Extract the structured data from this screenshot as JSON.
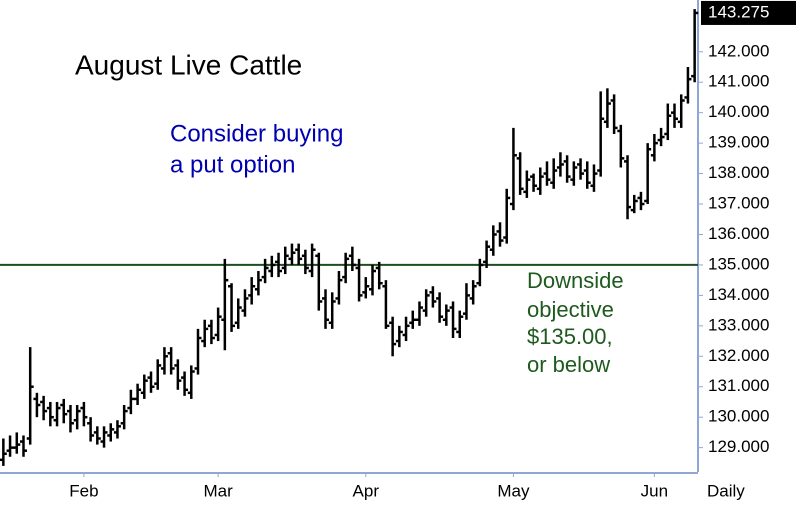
{
  "chart_data": {
    "type": "ohlc",
    "title": "August Live Cattle",
    "note": [
      "Consider buying",
      "a put option"
    ],
    "target_note": [
      "Downside",
      "objective",
      "$135.00,",
      "or below"
    ],
    "period_label": "Daily",
    "color": "#000000",
    "hline": {
      "value": 135,
      "color": "#1e4d1e"
    },
    "ylim": [
      128.2,
      143.7
    ],
    "yticks": [
      {
        "value": 129,
        "label": "129.000"
      },
      {
        "value": 130,
        "label": "130.000"
      },
      {
        "value": 131,
        "label": "131.000"
      },
      {
        "value": 132,
        "label": "132.000"
      },
      {
        "value": 133,
        "label": "133.000"
      },
      {
        "value": 134,
        "label": "134.000"
      },
      {
        "value": 135,
        "label": "135.000"
      },
      {
        "value": 136,
        "label": "136.000"
      },
      {
        "value": 137,
        "label": "137.000"
      },
      {
        "value": 138,
        "label": "138.000"
      },
      {
        "value": 139,
        "label": "139.000"
      },
      {
        "value": 140,
        "label": "140.000"
      },
      {
        "value": 141,
        "label": "141.000"
      },
      {
        "value": 142,
        "label": "142.000"
      }
    ],
    "xticks": [
      {
        "value": 12,
        "label": "Feb"
      },
      {
        "value": 32,
        "label": "Mar"
      },
      {
        "value": 54,
        "label": "Apr"
      },
      {
        "value": 76,
        "label": "May"
      },
      {
        "value": 97,
        "label": "Jun"
      }
    ],
    "open": [
      128.6,
      128.9,
      129.0,
      129.2,
      129.3,
      130.6,
      130.5,
      130.3,
      129.9,
      130.4,
      130.2,
      129.9,
      130.3,
      129.8,
      129.5,
      129.2,
      129.4,
      129.5,
      129.8,
      130.3,
      130.6,
      130.8,
      131.3,
      131.1,
      131.6,
      132.1,
      131.7,
      131.3,
      130.8,
      131.6,
      132.5,
      133.0,
      132.7,
      133.2,
      134.3,
      133.1,
      133.5,
      134.0,
      134.2,
      134.6,
      134.8,
      135.1,
      134.9,
      135.2,
      135.5,
      135.3,
      134.8,
      135.3,
      133.9,
      133.1,
      133.9,
      134.6,
      135.3,
      134.9,
      134.1,
      134.2,
      134.9,
      134.3,
      133.1,
      132.5,
      132.7,
      133.1,
      133.2,
      133.5,
      134.1,
      133.9,
      133.2,
      133.6,
      132.8,
      133.4,
      133.9,
      134.4,
      135.1,
      135.5,
      136.1,
      135.9,
      137.0,
      138.5,
      137.4,
      137.9,
      137.5,
      138.0,
      137.7,
      138.2,
      138.4,
      137.8,
      138.3,
      138.1,
      137.6,
      138.1,
      139.7,
      140.4,
      139.4,
      138.4,
      136.8,
      137.2,
      137.1,
      138.6,
      139.1,
      139.3,
      140.0,
      139.7,
      140.5,
      141.2
    ],
    "high": [
      129.3,
      129.4,
      129.5,
      129.4,
      132.3,
      130.8,
      130.7,
      130.5,
      130.5,
      130.6,
      130.4,
      130.4,
      130.5,
      130.0,
      129.7,
      129.7,
      129.8,
      129.9,
      130.4,
      130.9,
      131.1,
      131.4,
      131.5,
      131.9,
      132.3,
      132.3,
      131.9,
      131.5,
      131.7,
      132.9,
      133.2,
      133.2,
      133.6,
      135.2,
      134.4,
      133.9,
      134.2,
      134.6,
      134.8,
      135.2,
      135.3,
      135.4,
      135.6,
      135.7,
      135.7,
      135.5,
      135.7,
      135.4,
      134.2,
      134.1,
      134.8,
      135.4,
      135.6,
      135.2,
      134.6,
      135.0,
      135.1,
      134.5,
      133.3,
      133.0,
      133.3,
      133.5,
      133.8,
      134.2,
      134.3,
      134.1,
      133.7,
      133.8,
      133.5,
      134.4,
      134.5,
      135.2,
      135.8,
      136.3,
      136.4,
      137.5,
      139.5,
      138.7,
      138.1,
      138.0,
      138.2,
      138.4,
      138.5,
      138.7,
      138.6,
      138.4,
      138.5,
      138.4,
      138.3,
      140.7,
      140.8,
      140.6,
      139.6,
      138.6,
      137.3,
      137.4,
      139.0,
      139.3,
      139.5,
      140.3,
      140.3,
      140.6,
      141.5,
      143.4
    ],
    "low": [
      128.4,
      128.7,
      128.8,
      128.7,
      129.1,
      130.0,
      129.9,
      129.7,
      129.7,
      129.8,
      129.5,
      129.6,
      129.7,
      129.2,
      129.1,
      129.0,
      129.2,
      129.3,
      129.6,
      130.1,
      130.4,
      130.6,
      130.8,
      130.9,
      131.4,
      131.4,
      130.9,
      130.7,
      130.6,
      131.4,
      132.3,
      132.4,
      132.5,
      132.2,
      132.8,
      132.9,
      133.3,
      133.7,
      134.0,
      134.4,
      134.6,
      134.6,
      134.7,
      135.0,
      135.0,
      134.7,
      134.6,
      133.5,
      132.9,
      132.9,
      133.7,
      134.4,
      134.8,
      133.8,
      133.9,
      134.0,
      134.2,
      132.9,
      132.0,
      132.3,
      132.5,
      132.9,
      133.0,
      133.3,
      133.6,
      133.1,
      133.0,
      132.6,
      132.6,
      133.2,
      133.7,
      134.3,
      134.9,
      135.3,
      135.6,
      135.7,
      136.8,
      137.3,
      137.2,
      137.4,
      137.3,
      137.6,
      137.5,
      137.9,
      137.7,
      137.6,
      137.8,
      137.5,
      137.4,
      137.9,
      139.5,
      139.3,
      138.2,
      136.5,
      136.7,
      136.8,
      137.0,
      138.4,
      138.9,
      139.1,
      139.5,
      139.5,
      140.3,
      141.0
    ],
    "close": [
      128.8,
      129.0,
      129.1,
      128.9,
      131.0,
      130.4,
      130.2,
      130.0,
      130.3,
      130.1,
      129.8,
      130.2,
      130.0,
      129.4,
      129.3,
      129.5,
      129.6,
      129.7,
      130.2,
      130.6,
      130.9,
      131.2,
      131.0,
      131.7,
      132.0,
      131.6,
      131.2,
      130.9,
      131.5,
      132.6,
      132.9,
      132.6,
      133.3,
      134.5,
      133.0,
      133.6,
      133.9,
      134.3,
      134.5,
      134.9,
      135.0,
      134.8,
      135.3,
      135.4,
      135.2,
      134.9,
      135.5,
      133.8,
      133.2,
      133.8,
      134.5,
      135.2,
      135.0,
      134.0,
      134.3,
      134.8,
      134.4,
      133.0,
      132.4,
      132.8,
      133.0,
      133.2,
      133.6,
      134.0,
      133.8,
      133.3,
      133.5,
      132.9,
      133.3,
      134.0,
      134.3,
      135.0,
      135.6,
      136.0,
      135.8,
      137.2,
      138.6,
      137.5,
      137.8,
      137.6,
      137.9,
      137.8,
      138.1,
      138.3,
      137.9,
      138.2,
      138.0,
      137.7,
      138.0,
      139.8,
      140.3,
      139.5,
      138.5,
      136.9,
      137.1,
      137.0,
      138.8,
      139.0,
      139.2,
      139.9,
      139.8,
      140.4,
      141.1,
      143.275
    ]
  }
}
